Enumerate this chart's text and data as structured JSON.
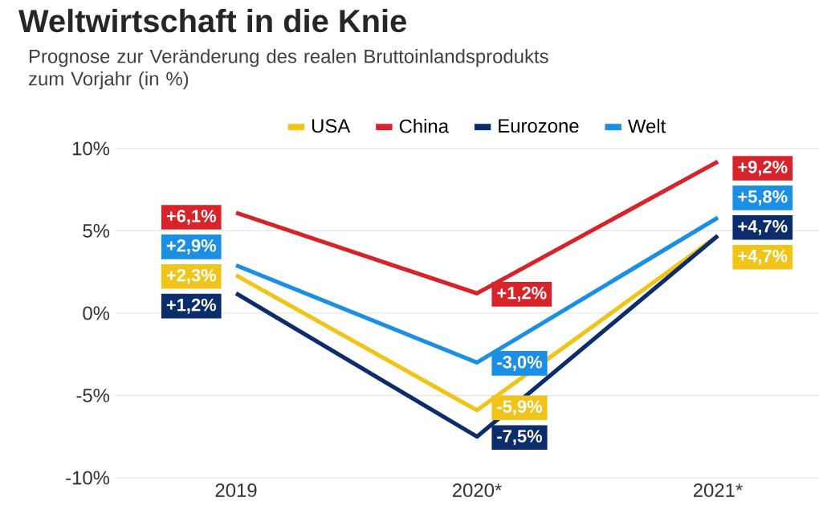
{
  "chart_data": {
    "type": "line",
    "title": "Weltwirtschaft in die Knie",
    "subtitle": "Prognose zur Veränderung des realen Bruttoinlandsprodukts zum Vorjahr (in %)",
    "categories": [
      "2019",
      "2020*",
      "2021*"
    ],
    "series": [
      {
        "name": "USA",
        "color": "#f0c419",
        "values": [
          2.3,
          -5.9,
          4.7
        ],
        "value_labels": [
          "+2,3%",
          "-5,9%",
          "+4,7%"
        ]
      },
      {
        "name": "China",
        "color": "#d7232a",
        "values": [
          6.1,
          1.2,
          9.2
        ],
        "value_labels": [
          "+6,1%",
          "+1,2%",
          "+9,2%"
        ]
      },
      {
        "name": "Eurozone",
        "color": "#0b2d6b",
        "values": [
          1.2,
          -7.5,
          4.7
        ],
        "value_labels": [
          "+1,2%",
          "-7,5%",
          "+4,7%"
        ]
      },
      {
        "name": "Welt",
        "color": "#1a8fe3",
        "values": [
          2.9,
          -3.0,
          5.8
        ],
        "value_labels": [
          "+2,9%",
          "-3,0%",
          "+5,8%"
        ]
      }
    ],
    "ylim": [
      -10,
      10
    ],
    "yticks": [
      {
        "value": -10,
        "label": "-10%"
      },
      {
        "value": -5,
        "label": "-5%"
      },
      {
        "value": 0,
        "label": "0%"
      },
      {
        "value": 5,
        "label": "5%"
      },
      {
        "value": 10,
        "label": "10%"
      }
    ],
    "grid": "y",
    "legend": "top",
    "marker": "none",
    "line_style": "solid"
  }
}
